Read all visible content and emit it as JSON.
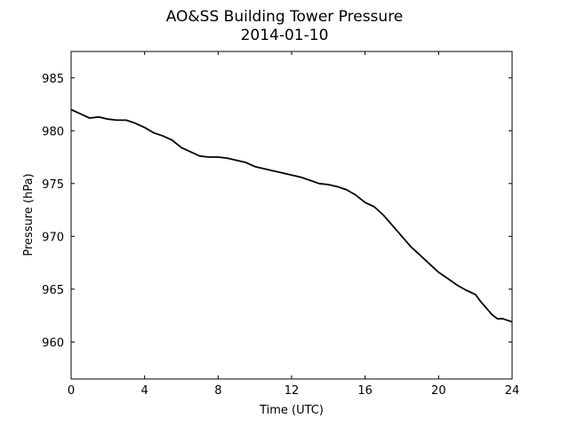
{
  "chart_data": {
    "type": "line",
    "title": "AO&SS Building Tower Pressure",
    "subtitle": "2014-01-10",
    "xlabel": "Time (UTC)",
    "ylabel": "Pressure (hPa)",
    "xlim": [
      0,
      24
    ],
    "ylim": [
      956.5,
      987.5
    ],
    "xticks": [
      0,
      4,
      8,
      12,
      16,
      20,
      24
    ],
    "yticks": [
      960,
      965,
      970,
      975,
      980,
      985
    ],
    "grid": false,
    "legend": "none",
    "line_color": "#000000",
    "series": [
      {
        "x": [
          0,
          0.5,
          1,
          1.5,
          2,
          2.5,
          3,
          3.5,
          4,
          4.5,
          5,
          5.5,
          6,
          6.5,
          7,
          7.5,
          8,
          8.5,
          9,
          9.5,
          10,
          10.5,
          11,
          11.5,
          12,
          12.5,
          13,
          13.5,
          14,
          14.5,
          15,
          15.5,
          16,
          16.5,
          17,
          17.5,
          18,
          18.5,
          19,
          19.5,
          20,
          20.5,
          21,
          21.5,
          22,
          22.3,
          22.6,
          22.9,
          23.2,
          23.5,
          24
        ],
        "y": [
          982.0,
          981.6,
          981.2,
          981.3,
          981.1,
          981.0,
          981.0,
          980.7,
          980.3,
          979.8,
          979.5,
          979.1,
          978.4,
          978.0,
          977.6,
          977.5,
          977.5,
          977.4,
          977.2,
          977.0,
          976.6,
          976.4,
          976.2,
          976.0,
          975.8,
          975.6,
          975.3,
          975.0,
          974.9,
          974.7,
          974.4,
          973.9,
          973.2,
          972.8,
          972.0,
          971.0,
          970.0,
          969.0,
          968.2,
          967.4,
          966.6,
          966.0,
          965.4,
          964.9,
          964.5,
          963.8,
          963.2,
          962.6,
          962.2,
          962.2,
          961.9
        ]
      }
    ]
  }
}
